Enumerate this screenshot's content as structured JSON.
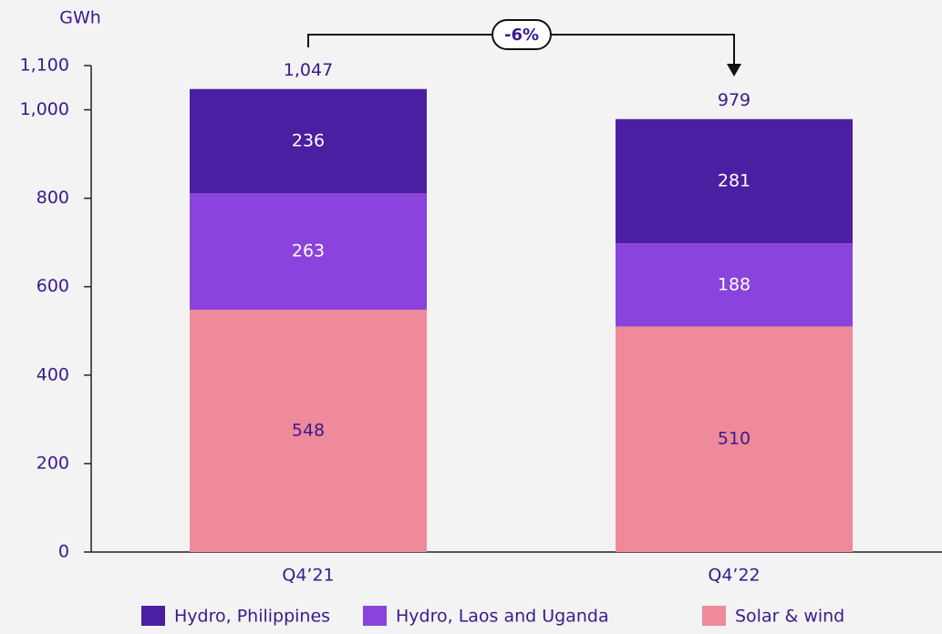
{
  "chart_data": {
    "type": "stacked-bar",
    "y_axis_label": "GWh",
    "categories": [
      "Q4’21",
      "Q4’22"
    ],
    "series": [
      {
        "name": "Hydro, Philippines",
        "color": "#4b1fa1",
        "values": [
          236,
          281
        ]
      },
      {
        "name": "Hydro, Laos and Uganda",
        "color": "#8a43dc",
        "values": [
          263,
          188
        ]
      },
      {
        "name": "Solar & wind",
        "color": "#ee8a9a",
        "values": [
          548,
          510
        ]
      }
    ],
    "totals": [
      1047,
      979
    ],
    "total_labels": [
      "1,047",
      "979"
    ],
    "annotation": "-6%",
    "ylim": [
      0,
      1100
    ],
    "yticks": [
      0,
      200,
      400,
      600,
      800,
      {
        "value": 1000,
        "label": "1,000"
      },
      {
        "value": 1100,
        "label": "1,100"
      }
    ]
  }
}
